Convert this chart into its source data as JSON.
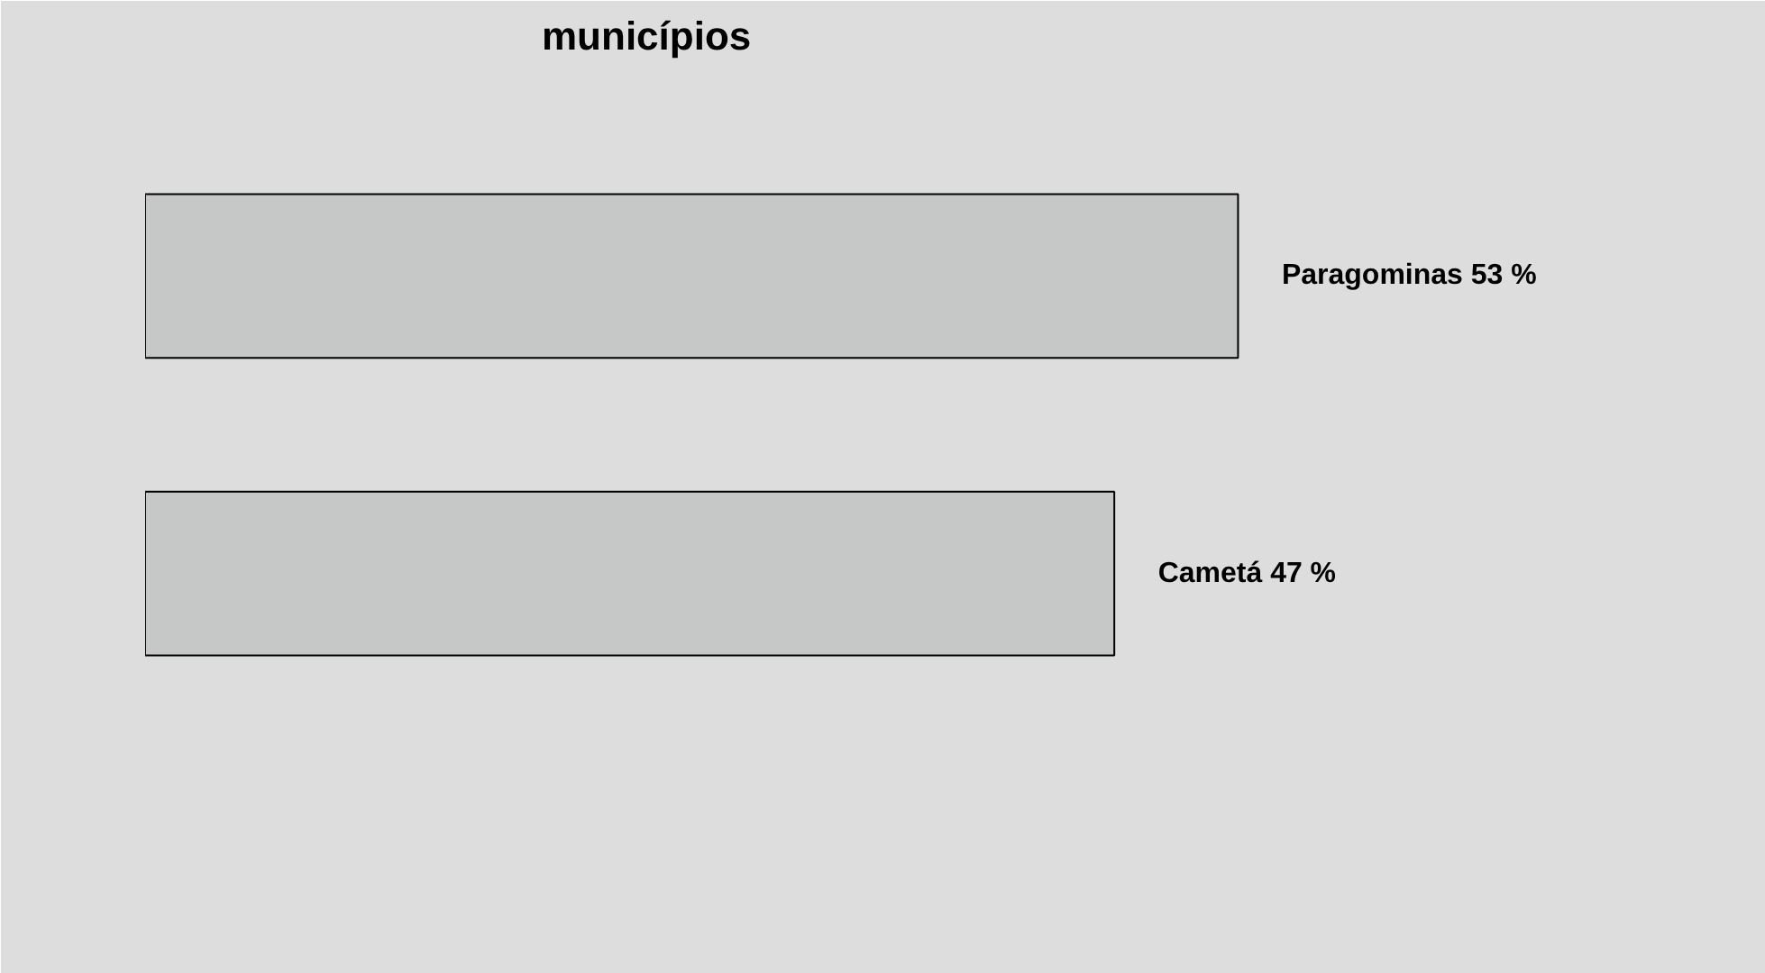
{
  "chart_data": {
    "type": "bar",
    "orientation": "horizontal",
    "title": "municípios",
    "categories": [
      null,
      null
    ],
    "values": [
      53,
      47
    ],
    "value_labels": [
      "Paragominas  53 %",
      "Cametá  47 %"
    ],
    "color": "#c6c8c8",
    "grid": false,
    "legend": false,
    "tick_labels": false
  }
}
